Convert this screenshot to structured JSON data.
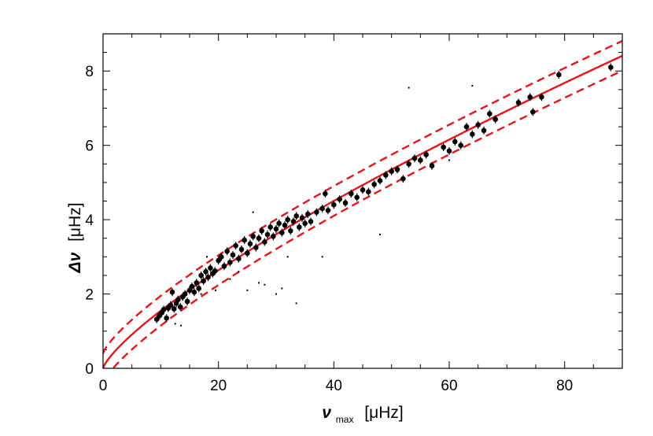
{
  "chart_data": {
    "type": "scatter",
    "title": "",
    "xlabel": {
      "symbol": "ν",
      "subscript": "max",
      "unit": "[μHz]"
    },
    "ylabel": {
      "symbol": "Δν",
      "unit": "[μHz]"
    },
    "xlim": [
      0,
      90
    ],
    "ylim": [
      0,
      9
    ],
    "xticks": [
      0,
      20,
      40,
      60,
      80
    ],
    "yticks": [
      0,
      2,
      4,
      6,
      8
    ],
    "xtick_labels": [
      "0",
      "20",
      "40",
      "60",
      "80"
    ],
    "ytick_labels": [
      "0",
      "2",
      "4",
      "6",
      "8"
    ],
    "grid": false,
    "legend": null,
    "colors": {
      "fit": "#e3141a",
      "points": "#000000",
      "axes": "#000000"
    },
    "fit": {
      "form": "power-law",
      "a": 0.263,
      "b": 0.77
    },
    "band": {
      "lower_offset": -0.4,
      "upper_offset": 0.4
    },
    "series": [
      {
        "marker": "circle",
        "points": [
          [
            9.3,
            1.32
          ],
          [
            9.8,
            1.42
          ],
          [
            10.2,
            1.5
          ],
          [
            10.5,
            1.58
          ],
          [
            11.0,
            1.35
          ],
          [
            11.3,
            1.62
          ],
          [
            11.7,
            1.7
          ],
          [
            12.0,
            2.05
          ],
          [
            12.3,
            1.6
          ],
          [
            12.7,
            1.75
          ],
          [
            13.0,
            1.85
          ],
          [
            13.4,
            1.65
          ],
          [
            13.8,
            1.92
          ],
          [
            14.2,
            2.0
          ],
          [
            14.6,
            1.8
          ],
          [
            15.0,
            2.1
          ],
          [
            15.4,
            2.2
          ],
          [
            15.8,
            2.05
          ],
          [
            16.2,
            2.3
          ],
          [
            16.6,
            2.15
          ],
          [
            17.0,
            2.5
          ],
          [
            17.4,
            2.35
          ],
          [
            17.8,
            2.6
          ],
          [
            18.2,
            2.45
          ],
          [
            18.6,
            2.7
          ],
          [
            19.0,
            2.55
          ],
          [
            19.4,
            2.62
          ],
          [
            20.0,
            2.9
          ],
          [
            20.5,
            3.0
          ],
          [
            21.0,
            2.75
          ],
          [
            21.5,
            3.15
          ],
          [
            22.0,
            2.85
          ],
          [
            22.5,
            3.05
          ],
          [
            23.0,
            3.3
          ],
          [
            23.5,
            2.95
          ],
          [
            24.0,
            3.2
          ],
          [
            24.5,
            3.45
          ],
          [
            25.0,
            3.1
          ],
          [
            25.5,
            3.35
          ],
          [
            26.0,
            3.55
          ],
          [
            26.5,
            3.25
          ],
          [
            27.0,
            3.5
          ],
          [
            27.5,
            3.7
          ],
          [
            28.0,
            3.4
          ],
          [
            28.5,
            3.6
          ],
          [
            29.0,
            3.8
          ],
          [
            29.5,
            3.55
          ],
          [
            30.0,
            3.75
          ],
          [
            30.5,
            3.9
          ],
          [
            31.0,
            3.65
          ],
          [
            31.5,
            3.85
          ],
          [
            32.0,
            4.0
          ],
          [
            32.5,
            3.7
          ],
          [
            33.0,
            3.95
          ],
          [
            33.5,
            4.1
          ],
          [
            34.0,
            3.8
          ],
          [
            34.5,
            4.05
          ],
          [
            35.0,
            3.9
          ],
          [
            35.5,
            4.15
          ],
          [
            36.0,
            3.95
          ],
          [
            37.0,
            4.2
          ],
          [
            38.0,
            4.3
          ],
          [
            38.5,
            4.7
          ],
          [
            39.0,
            4.25
          ],
          [
            40.0,
            4.4
          ],
          [
            41.0,
            4.55
          ],
          [
            42.0,
            4.45
          ],
          [
            43.0,
            4.7
          ],
          [
            44.0,
            4.6
          ],
          [
            45.0,
            4.8
          ],
          [
            46.0,
            4.75
          ],
          [
            47.0,
            4.95
          ],
          [
            48.0,
            5.05
          ],
          [
            49.0,
            5.2
          ],
          [
            50.0,
            5.3
          ],
          [
            51.0,
            5.35
          ],
          [
            52.0,
            5.1
          ],
          [
            53.0,
            5.5
          ],
          [
            54.0,
            5.65
          ],
          [
            55.0,
            5.6
          ],
          [
            56.0,
            5.75
          ],
          [
            57.0,
            5.45
          ],
          [
            59.0,
            5.95
          ],
          [
            60.0,
            5.85
          ],
          [
            61.0,
            6.1
          ],
          [
            62.0,
            6.0
          ],
          [
            63.0,
            6.5
          ],
          [
            64.0,
            6.3
          ],
          [
            65.0,
            6.55
          ],
          [
            66.0,
            6.4
          ],
          [
            67.0,
            6.85
          ],
          [
            68.0,
            6.7
          ],
          [
            72.0,
            7.15
          ],
          [
            74.0,
            7.3
          ],
          [
            74.5,
            6.9
          ],
          [
            76.0,
            7.3
          ],
          [
            79.0,
            7.9
          ],
          [
            88.0,
            8.1
          ]
        ]
      },
      {
        "marker": "dot",
        "points": [
          [
            12.5,
            1.2
          ],
          [
            13.5,
            1.15
          ],
          [
            17.0,
            2.0
          ],
          [
            19.5,
            2.1
          ],
          [
            22.0,
            2.4
          ],
          [
            25.0,
            2.1
          ],
          [
            26.0,
            4.2
          ],
          [
            27.0,
            2.3
          ],
          [
            28.0,
            2.25
          ],
          [
            30.0,
            2.0
          ],
          [
            31.0,
            2.15
          ],
          [
            32.0,
            3.0
          ],
          [
            33.5,
            1.75
          ],
          [
            38.0,
            3.0
          ],
          [
            48.0,
            3.6
          ],
          [
            53.0,
            7.55
          ],
          [
            60.0,
            5.6
          ],
          [
            64.0,
            7.6
          ],
          [
            18.0,
            3.0
          ],
          [
            23.5,
            2.6
          ]
        ]
      }
    ]
  }
}
